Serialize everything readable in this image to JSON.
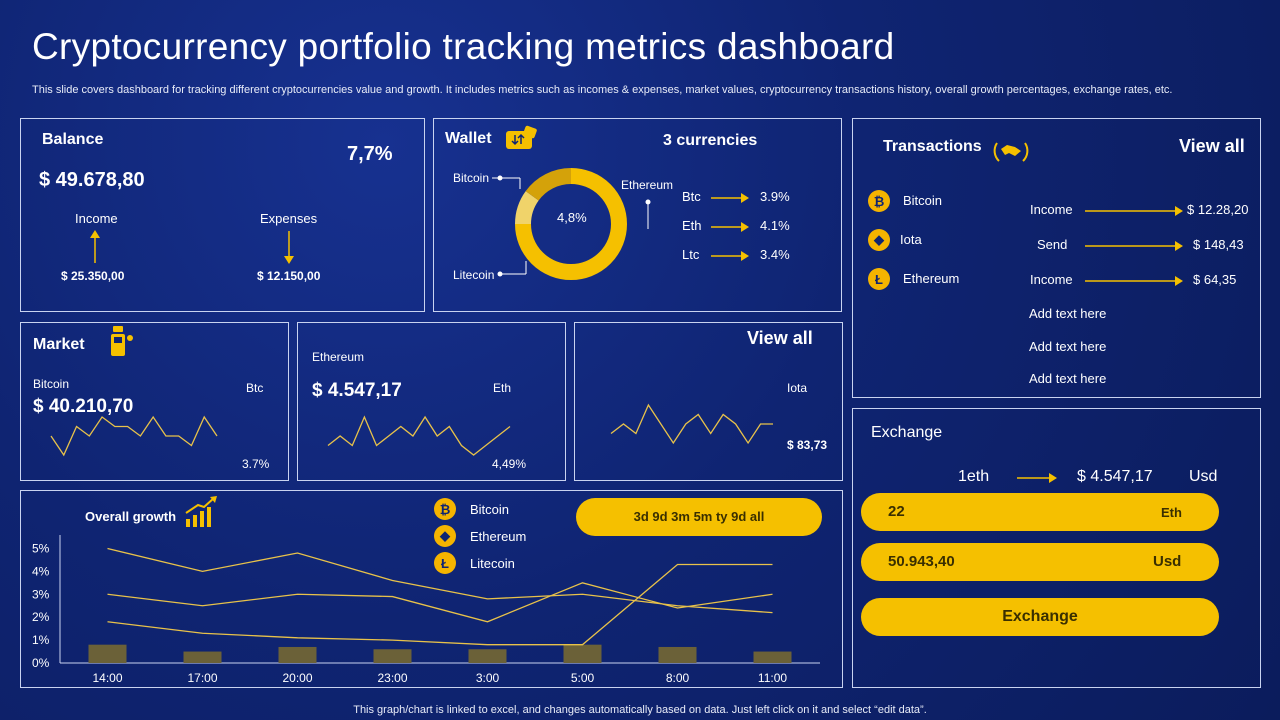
{
  "header": {
    "title": "Cryptocurrency portfolio tracking metrics dashboard",
    "subtitle": "This slide covers dashboard for tracking different cryptocurrencies value and growth. It includes metrics such as incomes & expenses, market values, cryptocurrency transactions history, overall growth percentages, exchange rates, etc."
  },
  "balance": {
    "title": "Balance",
    "percent": "7,7%",
    "amount": "$ 49.678,80",
    "income_label": "Income",
    "expenses_label": "Expenses",
    "income_value": "$ 25.350,00",
    "expenses_value": "$ 12.150,00"
  },
  "wallet": {
    "title": "Wallet",
    "currencies": "3 currencies",
    "center": "4,8%",
    "labels": {
      "bitcoin": "Bitcoin",
      "ethereum": "Ethereum",
      "litecoin": "Litecoin"
    },
    "donut": [
      {
        "name": "Ethereum",
        "value": 75
      },
      {
        "name": "Litecoin",
        "value": 10
      },
      {
        "name": "Bitcoin",
        "value": 15
      }
    ],
    "rates": [
      {
        "sym": "Btc",
        "value": "3.9%"
      },
      {
        "sym": "Eth",
        "value": "4.1%"
      },
      {
        "sym": "Ltc",
        "value": "3.4%"
      }
    ]
  },
  "transactions": {
    "title": "Transactions",
    "view_all": "View all",
    "coins": [
      "Bitcoin",
      "Iota",
      "Ethereum"
    ],
    "coin_glyphs": [
      "₿",
      "◆",
      "Ł"
    ],
    "rows": [
      {
        "type": "Income",
        "amount": "$ 12.28,20"
      },
      {
        "type": "Send",
        "amount": "$ 148,43"
      },
      {
        "type": "Income",
        "amount": "$ 64,35"
      }
    ],
    "placeholders": [
      "Add text here",
      "Add text here",
      "Add text here"
    ]
  },
  "market": {
    "title": "Market",
    "bitcoin": {
      "name": "Bitcoin",
      "sym": "Btc",
      "amount": "$ 40.210,70",
      "change": "3.7%",
      "series": [
        3,
        1,
        4,
        3,
        5,
        4,
        4,
        3,
        5,
        3,
        3,
        2,
        5,
        3
      ]
    },
    "ethereum": {
      "name": "Ethereum",
      "sym": "Eth",
      "amount": "$ 4.547,17",
      "change": "4,49%",
      "series": [
        2,
        3,
        2,
        5,
        2,
        3,
        4,
        3,
        5,
        3,
        4,
        2,
        1,
        2,
        3,
        4
      ]
    },
    "iota": {
      "view_all": "View all",
      "sym": "Iota",
      "amount": "$ 83,73",
      "series": [
        3,
        4,
        3,
        6,
        4,
        2,
        4,
        5,
        3,
        5,
        4,
        2,
        4,
        4
      ]
    }
  },
  "exchange": {
    "title": "Exchange",
    "from": "1eth",
    "to": "$ 4.547,17",
    "to_unit": "Usd",
    "field1_value": "22",
    "field1_unit": "Eth",
    "field2_value": "50.943,40",
    "field2_unit": "Usd",
    "button": "Exchange"
  },
  "growth": {
    "title": "Overall growth",
    "ranges": "3d 9d 3m 5m ty 9d all",
    "legend": [
      "Bitcoin",
      "Ethereum",
      "Litecoin"
    ],
    "legend_glyphs": [
      "₿",
      "◆",
      "Ł"
    ]
  },
  "chart_data": {
    "type": "line",
    "x": [
      "14:00",
      "17:00",
      "20:00",
      "23:00",
      "3:00",
      "5:00",
      "8:00",
      "11:00"
    ],
    "series": [
      {
        "name": "Bitcoin",
        "values": [
          5.0,
          4.0,
          4.8,
          3.6,
          2.8,
          3.0,
          2.5,
          2.2
        ]
      },
      {
        "name": "Ethereum",
        "values": [
          3.0,
          2.5,
          3.0,
          2.9,
          1.8,
          3.5,
          2.4,
          3.0
        ]
      },
      {
        "name": "Litecoin",
        "values": [
          1.8,
          1.3,
          1.1,
          1.0,
          0.8,
          0.8,
          4.3,
          4.3
        ]
      }
    ],
    "bars": [
      0.8,
      0.5,
      0.7,
      0.6,
      0.6,
      0.8,
      0.7,
      0.5
    ],
    "yticks": [
      "0%",
      "1%",
      "2%",
      "3%",
      "4%",
      "5%"
    ],
    "ylim": [
      0,
      5.5
    ]
  },
  "footer": "This graph/chart is linked to excel, and changes automatically based on data. Just left click on it and select “edit data”.",
  "colors": {
    "bg": "#0f2472",
    "accent": "#f5c000",
    "line": "#e8c24a",
    "bar": "#6b6138"
  }
}
